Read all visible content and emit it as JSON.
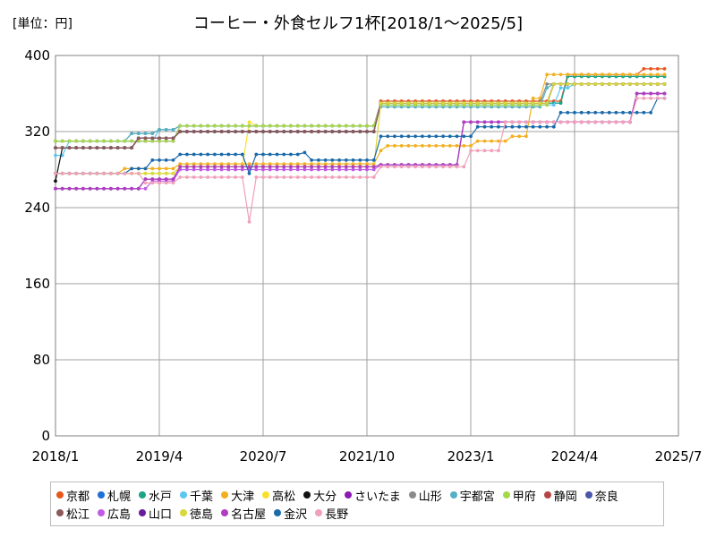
{
  "chart_data": {
    "type": "line",
    "title": "コーヒー・外食セルフ1杯[2018/1～2025/5]",
    "unit_label": "[単位：円]",
    "xlabel": "",
    "ylabel": "",
    "ylim": [
      0,
      400
    ],
    "yticks": [
      0,
      80,
      160,
      240,
      320,
      400
    ],
    "xlim": [
      "2018-01",
      "2025-07"
    ],
    "xticks": [
      "2018/1",
      "2019/4",
      "2020/7",
      "2021/10",
      "2023/1",
      "2024/4",
      "2025/7"
    ],
    "grid": true,
    "legend_position": "bottom",
    "series": [
      {
        "name": "京都",
        "color": "#e8561c",
        "steps": [
          [
            "2018-01",
            303
          ],
          [
            "2019-01",
            313
          ],
          [
            "2019-07",
            320
          ],
          [
            "2021-12",
            352
          ],
          [
            "2024-03",
            380
          ],
          [
            "2025-02",
            386
          ],
          [
            "2025-05",
            386
          ]
        ]
      },
      {
        "name": "札幌",
        "color": "#1f6fd8",
        "steps": [
          [
            "2018-01",
            303
          ],
          [
            "2019-01",
            313
          ],
          [
            "2019-07",
            320
          ],
          [
            "2021-12",
            350
          ],
          [
            "2024-03",
            378
          ],
          [
            "2025-05",
            378
          ]
        ]
      },
      {
        "name": "水戸",
        "color": "#1aa585",
        "steps": [
          [
            "2018-01",
            303
          ],
          [
            "2019-01",
            313
          ],
          [
            "2019-07",
            320
          ],
          [
            "2021-12",
            350
          ],
          [
            "2024-03",
            378
          ],
          [
            "2025-05",
            378
          ]
        ]
      },
      {
        "name": "千葉",
        "color": "#5cc6f2",
        "steps": [
          [
            "2018-01",
            295
          ],
          [
            "2018-03",
            310
          ],
          [
            "2019-04",
            322
          ],
          [
            "2019-07",
            326
          ],
          [
            "2021-12",
            348
          ],
          [
            "2024-02",
            366
          ],
          [
            "2024-04",
            370
          ],
          [
            "2025-05",
            370
          ]
        ]
      },
      {
        "name": "大津",
        "color": "#f2b020",
        "steps": [
          [
            "2018-01",
            276
          ],
          [
            "2018-11",
            281
          ],
          [
            "2019-07",
            286
          ],
          [
            "2021-12",
            300
          ],
          [
            "2022-01",
            305
          ],
          [
            "2023-02",
            310
          ],
          [
            "2023-07",
            315
          ],
          [
            "2023-10",
            355
          ],
          [
            "2023-12",
            380
          ],
          [
            "2025-05",
            380
          ]
        ]
      },
      {
        "name": "高松",
        "color": "#f7e02c",
        "steps": [
          [
            "2018-01",
            276
          ],
          [
            "2019-07",
            283
          ],
          [
            "2020-05",
            330
          ],
          [
            "2020-06",
            326
          ],
          [
            "2021-12",
            350
          ],
          [
            "2024-01",
            370
          ],
          [
            "2025-05",
            370
          ]
        ]
      },
      {
        "name": "大分",
        "color": "#111111",
        "steps": [
          [
            "2018-01",
            268
          ],
          [
            "2018-02",
            303
          ],
          [
            "2019-01",
            313
          ],
          [
            "2019-07",
            320
          ],
          [
            "2021-12",
            350
          ],
          [
            "2024-01",
            370
          ],
          [
            "2025-05",
            370
          ]
        ]
      },
      {
        "name": "さいたま",
        "color": "#8c1ab2",
        "steps": [
          [
            "2018-01",
            310
          ],
          [
            "2019-07",
            326
          ],
          [
            "2021-12",
            350
          ],
          [
            "2024-01",
            370
          ],
          [
            "2025-05",
            370
          ]
        ]
      },
      {
        "name": "山形",
        "color": "#8a8a8a",
        "steps": [
          [
            "2018-01",
            310
          ],
          [
            "2018-12",
            318
          ],
          [
            "2019-04",
            322
          ],
          [
            "2019-07",
            326
          ],
          [
            "2021-12",
            350
          ],
          [
            "2023-12",
            370
          ],
          [
            "2025-05",
            370
          ]
        ]
      },
      {
        "name": "宇都宮",
        "color": "#54b0c4",
        "steps": [
          [
            "2018-01",
            310
          ],
          [
            "2018-12",
            318
          ],
          [
            "2019-04",
            322
          ],
          [
            "2019-07",
            326
          ],
          [
            "2021-12",
            346
          ],
          [
            "2023-12",
            366
          ],
          [
            "2024-01",
            370
          ],
          [
            "2025-05",
            370
          ]
        ]
      },
      {
        "name": "甲府",
        "color": "#a6d84a",
        "steps": [
          [
            "2018-01",
            310
          ],
          [
            "2019-07",
            326
          ],
          [
            "2021-12",
            348
          ],
          [
            "2024-01",
            370
          ],
          [
            "2025-05",
            370
          ]
        ]
      },
      {
        "name": "静岡",
        "color": "#b44545",
        "steps": [
          [
            "2018-01",
            303
          ],
          [
            "2019-01",
            313
          ],
          [
            "2019-07",
            320
          ],
          [
            "2021-12",
            350
          ],
          [
            "2024-01",
            370
          ],
          [
            "2025-05",
            370
          ]
        ]
      },
      {
        "name": "奈良",
        "color": "#4a56a8",
        "steps": [
          [
            "2018-01",
            303
          ],
          [
            "2019-01",
            313
          ],
          [
            "2019-07",
            320
          ],
          [
            "2021-12",
            350
          ],
          [
            "2024-01",
            370
          ],
          [
            "2025-05",
            370
          ]
        ]
      },
      {
        "name": "松江",
        "color": "#8c5a5a",
        "steps": [
          [
            "2018-01",
            303
          ],
          [
            "2019-01",
            313
          ],
          [
            "2019-07",
            320
          ],
          [
            "2021-12",
            350
          ],
          [
            "2024-01",
            370
          ],
          [
            "2025-05",
            370
          ]
        ]
      },
      {
        "name": "広島",
        "color": "#c15be6",
        "steps": [
          [
            "2018-01",
            260
          ],
          [
            "2019-03",
            268
          ],
          [
            "2019-07",
            280
          ],
          [
            "2021-12",
            285
          ],
          [
            "2022-12",
            330
          ],
          [
            "2025-01",
            360
          ],
          [
            "2025-05",
            360
          ]
        ]
      },
      {
        "name": "山口",
        "color": "#6a1a9a",
        "steps": [
          [
            "2018-01",
            260
          ],
          [
            "2019-02",
            270
          ],
          [
            "2019-07",
            283
          ],
          [
            "2021-12",
            285
          ],
          [
            "2022-12",
            330
          ],
          [
            "2025-01",
            360
          ],
          [
            "2025-05",
            360
          ]
        ]
      },
      {
        "name": "徳島",
        "color": "#d8d83a",
        "steps": [
          [
            "2018-01",
            276
          ],
          [
            "2019-07",
            283
          ],
          [
            "2021-12",
            350
          ],
          [
            "2024-01",
            370
          ],
          [
            "2025-05",
            370
          ]
        ]
      },
      {
        "name": "名古屋",
        "color": "#b03ec0",
        "steps": [
          [
            "2018-01",
            260
          ],
          [
            "2019-02",
            270
          ],
          [
            "2019-07",
            283
          ],
          [
            "2021-12",
            285
          ],
          [
            "2022-12",
            330
          ],
          [
            "2025-01",
            360
          ],
          [
            "2025-05",
            360
          ]
        ]
      },
      {
        "name": "金沢",
        "color": "#1a6aaa",
        "steps": [
          [
            "2018-01",
            276
          ],
          [
            "2018-12",
            281
          ],
          [
            "2019-03",
            290
          ],
          [
            "2019-07",
            296
          ],
          [
            "2020-05",
            276
          ],
          [
            "2020-06",
            296
          ],
          [
            "2021-01",
            298
          ],
          [
            "2021-02",
            290
          ],
          [
            "2021-12",
            315
          ],
          [
            "2023-02",
            325
          ],
          [
            "2024-02",
            340
          ],
          [
            "2025-04",
            355
          ],
          [
            "2025-05",
            355
          ]
        ]
      },
      {
        "name": "長野",
        "color": "#f0a0b8",
        "steps": [
          [
            "2018-01",
            276
          ],
          [
            "2019-02",
            266
          ],
          [
            "2019-07",
            272
          ],
          [
            "2020-05",
            225
          ],
          [
            "2020-06",
            272
          ],
          [
            "2021-12",
            283
          ],
          [
            "2023-01",
            300
          ],
          [
            "2023-06",
            330
          ],
          [
            "2025-01",
            355
          ],
          [
            "2025-05",
            355
          ]
        ]
      }
    ]
  }
}
